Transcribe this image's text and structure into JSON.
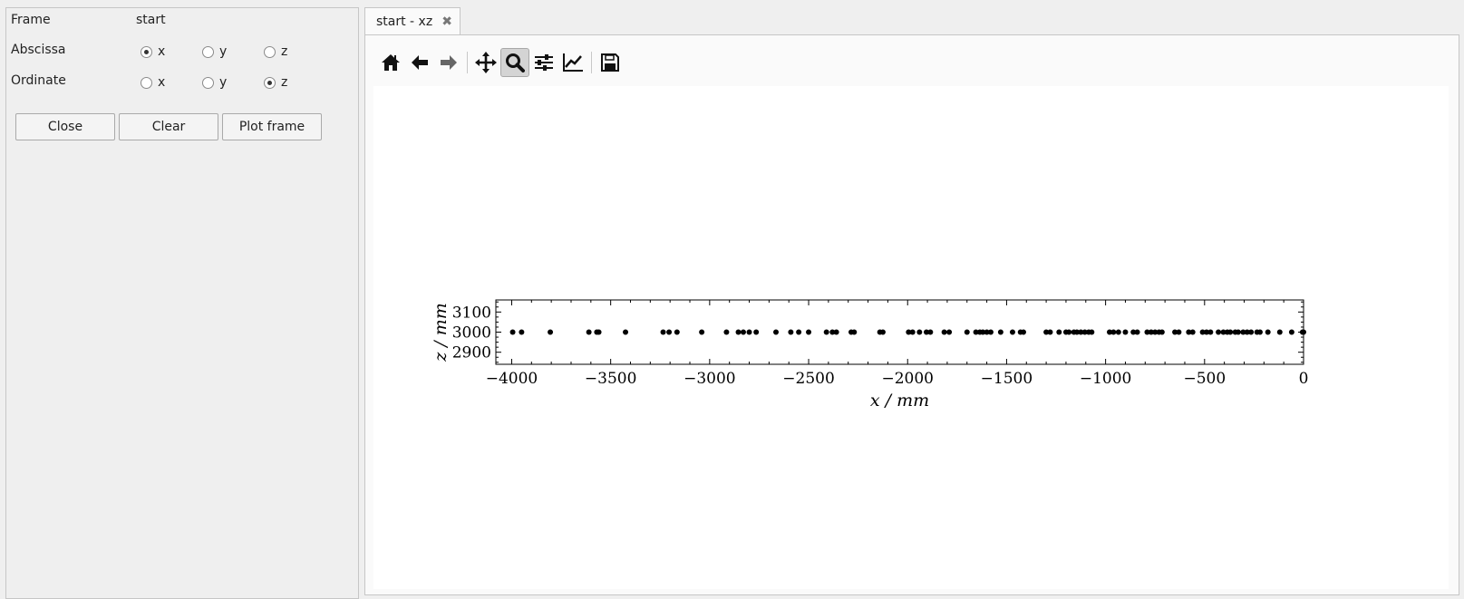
{
  "panel": {
    "frame_label": "Frame",
    "frame_value": "start",
    "abscissa_label": "Abscissa",
    "ordinate_label": "Ordinate",
    "abscissa_options": [
      {
        "label": "x",
        "checked": true
      },
      {
        "label": "y",
        "checked": false
      },
      {
        "label": "z",
        "checked": false
      }
    ],
    "ordinate_options": [
      {
        "label": "x",
        "checked": false
      },
      {
        "label": "y",
        "checked": false
      },
      {
        "label": "z",
        "checked": true
      }
    ],
    "buttons": {
      "close": "Close",
      "clear": "Clear",
      "plot_frame": "Plot frame"
    }
  },
  "tab": {
    "title": "start - xz",
    "close_icon": "close-icon"
  },
  "toolbar": {
    "tools": [
      {
        "name": "home-icon",
        "active": false
      },
      {
        "name": "back-arrow-icon",
        "active": false
      },
      {
        "name": "forward-arrow-icon",
        "active": false
      },
      {
        "name": "pan-icon",
        "active": false
      },
      {
        "name": "zoom-icon",
        "active": true
      },
      {
        "name": "subplot-settings-icon",
        "active": false
      },
      {
        "name": "axes-edit-icon",
        "active": false
      },
      {
        "name": "save-icon",
        "active": false
      }
    ]
  },
  "chart_data": {
    "type": "scatter",
    "xlabel": "x / mm",
    "ylabel": "z / mm",
    "xlim": [
      -4080,
      0
    ],
    "ylim": [
      2840,
      3160
    ],
    "xticks": [
      -4000,
      -3500,
      -3000,
      -2500,
      -2000,
      -1500,
      -1000,
      -500,
      0
    ],
    "xtick_labels": [
      "−4000",
      "−3500",
      "−3000",
      "−2500",
      "−2000",
      "−1500",
      "−1000",
      "−500",
      "0"
    ],
    "yticks": [
      2900,
      3000,
      3100
    ],
    "ytick_labels": [
      "2900",
      "3000",
      "3100"
    ],
    "grid": false,
    "marker_color": "#000000",
    "x": [
      -3995,
      -3950,
      -3805,
      -3610,
      -3570,
      -3560,
      -3425,
      -3235,
      -3205,
      -3165,
      -3040,
      -2915,
      -2855,
      -2830,
      -2800,
      -2765,
      -2665,
      -2590,
      -2550,
      -2500,
      -2410,
      -2380,
      -2360,
      -2285,
      -2270,
      -2140,
      -2125,
      -1995,
      -1975,
      -1940,
      -1905,
      -1885,
      -1815,
      -1790,
      -1700,
      -1655,
      -1635,
      -1620,
      -1600,
      -1580,
      -1530,
      -1470,
      -1430,
      -1415,
      -1300,
      -1280,
      -1235,
      -1200,
      -1185,
      -1160,
      -1145,
      -1125,
      -1105,
      -1085,
      -1070,
      -980,
      -960,
      -935,
      -900,
      -860,
      -840,
      -790,
      -770,
      -750,
      -730,
      -715,
      -650,
      -630,
      -580,
      -560,
      -510,
      -490,
      -470,
      -430,
      -405,
      -385,
      -370,
      -345,
      -330,
      -305,
      -285,
      -265,
      -235,
      -220,
      -180,
      -120,
      -60,
      -5,
      0
    ],
    "y": [
      3000,
      3000,
      3000,
      3000,
      3000,
      3000,
      3000,
      3000,
      3000,
      3000,
      3000,
      3000,
      3000,
      3000,
      3000,
      3000,
      3000,
      3000,
      3000,
      3000,
      3000,
      3000,
      3000,
      3000,
      3000,
      3000,
      3000,
      3000,
      3000,
      3000,
      3000,
      3000,
      3000,
      3000,
      3000,
      3000,
      3000,
      3000,
      3000,
      3000,
      3000,
      3000,
      3000,
      3000,
      3000,
      3000,
      3000,
      3000,
      3000,
      3000,
      3000,
      3000,
      3000,
      3000,
      3000,
      3000,
      3000,
      3000,
      3000,
      3000,
      3000,
      3000,
      3000,
      3000,
      3000,
      3000,
      3000,
      3000,
      3000,
      3000,
      3000,
      3000,
      3000,
      3000,
      3000,
      3000,
      3000,
      3000,
      3000,
      3000,
      3000,
      3000,
      3000,
      3000,
      3000,
      3000,
      3000,
      3000,
      3000
    ]
  }
}
